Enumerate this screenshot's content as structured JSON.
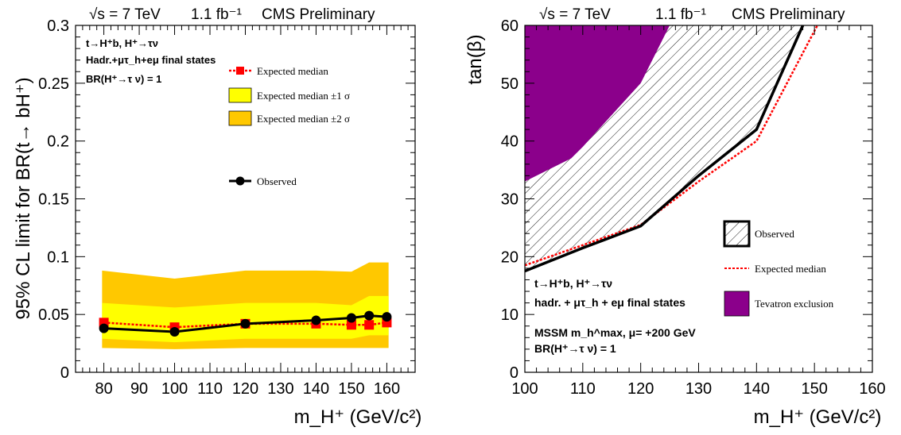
{
  "chart_data": [
    {
      "type": "line",
      "header": {
        "energy": "√s = 7 TeV",
        "lumi": "1.1 fb⁻¹",
        "label": "CMS Preliminary"
      },
      "ylabel": "95% CL limit for BR(t→ bH⁺)",
      "xlabel": "m_H⁺ (GeV/c²)",
      "xlim": [
        72,
        168
      ],
      "ylim": [
        0,
        0.3
      ],
      "x_ticks": [
        "80",
        "90",
        "100",
        "110",
        "120",
        "130",
        "140",
        "150",
        "160"
      ],
      "x_tick_values": [
        80,
        90,
        100,
        110,
        120,
        130,
        140,
        150,
        160
      ],
      "y_ticks": [
        "0",
        "0.05",
        "0.1",
        "0.15",
        "0.2",
        "0.25",
        "0.3"
      ],
      "y_tick_values": [
        0,
        0.05,
        0.1,
        0.15,
        0.2,
        0.25,
        0.3
      ],
      "annotations": [
        "t→H⁺b, H⁺→τν",
        "Hadr.+μτ_h+eμ final states",
        "BR(H⁺→τ ν) = 1"
      ],
      "x": [
        80,
        100,
        120,
        140,
        150,
        155,
        160
      ],
      "series": [
        {
          "name": "Observed",
          "values": [
            0.038,
            0.035,
            0.042,
            0.045,
            0.047,
            0.049,
            0.048
          ],
          "color": "#000000"
        },
        {
          "name": "Expected median",
          "values": [
            0.043,
            0.039,
            0.042,
            0.042,
            0.041,
            0.041,
            0.043
          ],
          "color": "#ff0000"
        },
        {
          "name": "Expected median ±1 σ",
          "lower": [
            0.029,
            0.026,
            0.029,
            0.029,
            0.029,
            0.032,
            0.032
          ],
          "upper": [
            0.06,
            0.056,
            0.06,
            0.06,
            0.058,
            0.066,
            0.066
          ],
          "color": "#ffff00"
        },
        {
          "name": "Expected median ±2 σ",
          "lower": [
            0.021,
            0.02,
            0.021,
            0.021,
            0.021,
            0.021,
            0.021
          ],
          "upper": [
            0.088,
            0.081,
            0.088,
            0.088,
            0.087,
            0.095,
            0.095
          ],
          "color": "#ffc800"
        }
      ]
    },
    {
      "type": "area",
      "header": {
        "energy": "√s = 7 TeV",
        "lumi": "1.1 fb⁻¹",
        "label": "CMS Preliminary"
      },
      "ylabel": "tan(β)",
      "xlabel": "m_H⁺ (GeV/c²)",
      "xlim": [
        100,
        160
      ],
      "ylim": [
        0,
        60
      ],
      "x_ticks": [
        "100",
        "110",
        "120",
        "130",
        "140",
        "150",
        "160"
      ],
      "x_tick_values": [
        100,
        110,
        120,
        130,
        140,
        150,
        160
      ],
      "y_ticks": [
        "0",
        "10",
        "20",
        "30",
        "40",
        "50",
        "60"
      ],
      "y_tick_values": [
        0,
        10,
        20,
        30,
        40,
        50,
        60
      ],
      "annotations": [
        "t→H⁺b, H⁺→τν",
        "hadr. + μτ_h + eμ final states",
        "MSSM m_h^max, μ= +200 GeV",
        "BR(H⁺→τ ν) = 1"
      ],
      "series": [
        {
          "name": "Observed",
          "x": [
            100,
            110,
            120,
            130,
            140,
            148
          ],
          "values": [
            17.5,
            21.5,
            25.3,
            34,
            42,
            60
          ],
          "color": "#000000"
        },
        {
          "name": "Expected median",
          "x": [
            100,
            110,
            120,
            130,
            140,
            150.5
          ],
          "values": [
            18.5,
            22,
            25.5,
            33,
            40,
            60
          ],
          "color": "#ff0000"
        },
        {
          "name": "Tevatron exclusion",
          "x": [
            100,
            108,
            110,
            120,
            125
          ],
          "values": [
            33,
            37,
            39,
            50,
            60
          ],
          "color": "#8b008b"
        }
      ]
    }
  ]
}
